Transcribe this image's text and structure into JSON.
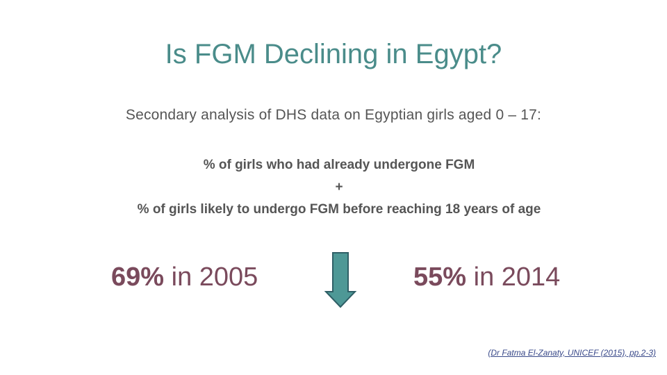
{
  "title": "Is FGM Declining in Egypt?",
  "subtitle": "Secondary analysis of DHS data on Egyptian girls aged 0 – 17:",
  "definition": {
    "line1": "% of girls who had already undergone FGM",
    "plus": "+",
    "line2": "% of girls likely to undergo FGM before reaching 18 years of age"
  },
  "stats": [
    {
      "percent": "69%",
      "rest": "in 2005"
    },
    {
      "percent": "55%",
      "rest": "in 2014"
    }
  ],
  "citation": "(Dr Fatma El-Zanaty, UNICEF (2015), pp.2-3)"
}
